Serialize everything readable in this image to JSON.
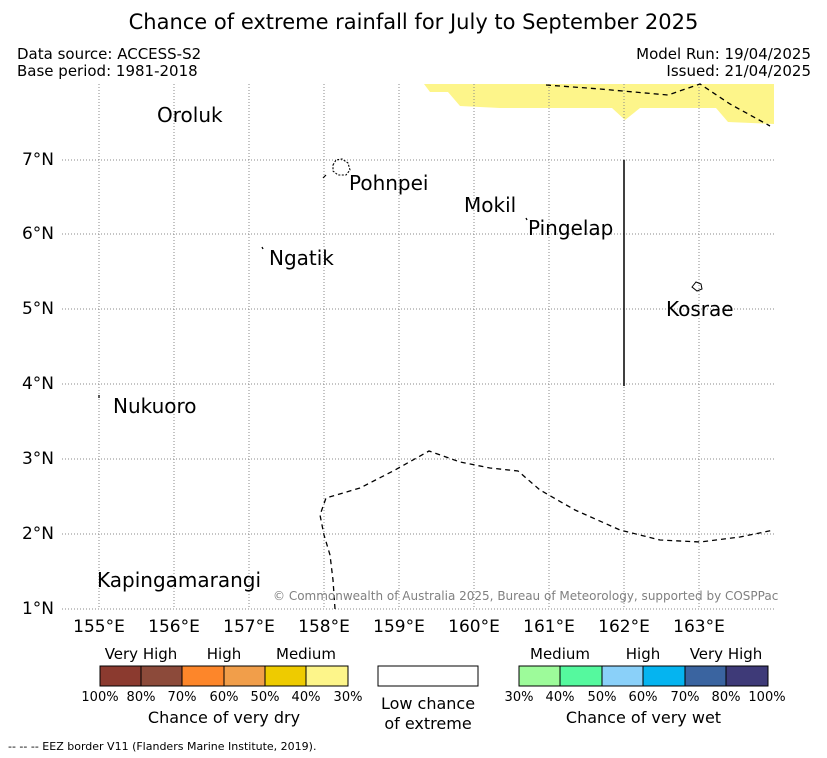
{
  "title": "Chance of extreme rainfall for July to September 2025",
  "meta": {
    "data_source": "Data source: ACCESS-S2",
    "base_period": "Base period: 1981-2018",
    "model_run": "Model Run: 19/04/2025",
    "issued": "Issued: 21/04/2025"
  },
  "axes": {
    "lat_labels": [
      "7°N",
      "6°N",
      "5°N",
      "4°N",
      "3°N",
      "2°N",
      "1°N"
    ],
    "lon_labels": [
      "155°E",
      "156°E",
      "157°E",
      "158°E",
      "159°E",
      "160°E",
      "161°E",
      "162°E",
      "163°E"
    ]
  },
  "places": [
    "Oroluk",
    "Pohnpei",
    "Mokil",
    "Pingelap",
    "Ngatik",
    "Kosrae",
    "Nukuoro",
    "Kapingamarangi"
  ],
  "copyright": "© Commonwealth of Australia 2025, Bureau of Meteorology, supported by COSPPac",
  "legend": {
    "dry": {
      "categories": [
        "Very High",
        "High",
        "Medium"
      ],
      "colors": [
        "#8b3a2f",
        "#8c4a3a",
        "#fd862a",
        "#f19e4a",
        "#eecb00",
        "#fdf58a"
      ],
      "ticks": [
        "100%",
        "80%",
        "70%",
        "60%",
        "50%",
        "40%",
        "30%"
      ],
      "title": "Chance of very dry"
    },
    "low": {
      "line1": "Low chance",
      "line2": "of extreme"
    },
    "wet": {
      "categories": [
        "Medium",
        "High",
        "Very High"
      ],
      "colors": [
        "#9dfb9a",
        "#55f99e",
        "#8ad0f9",
        "#05b4f0",
        "#3a64a0",
        "#3e3a78"
      ],
      "ticks": [
        "30%",
        "40%",
        "50%",
        "60%",
        "70%",
        "80%",
        "100%"
      ],
      "title": "Chance of very wet"
    }
  },
  "footer": "-- -- -- EEZ border V11 (Flanders Marine Institute, 2019).",
  "colors": {
    "dry_shading": "#fdf58a",
    "grid": "#8a8a8a"
  }
}
